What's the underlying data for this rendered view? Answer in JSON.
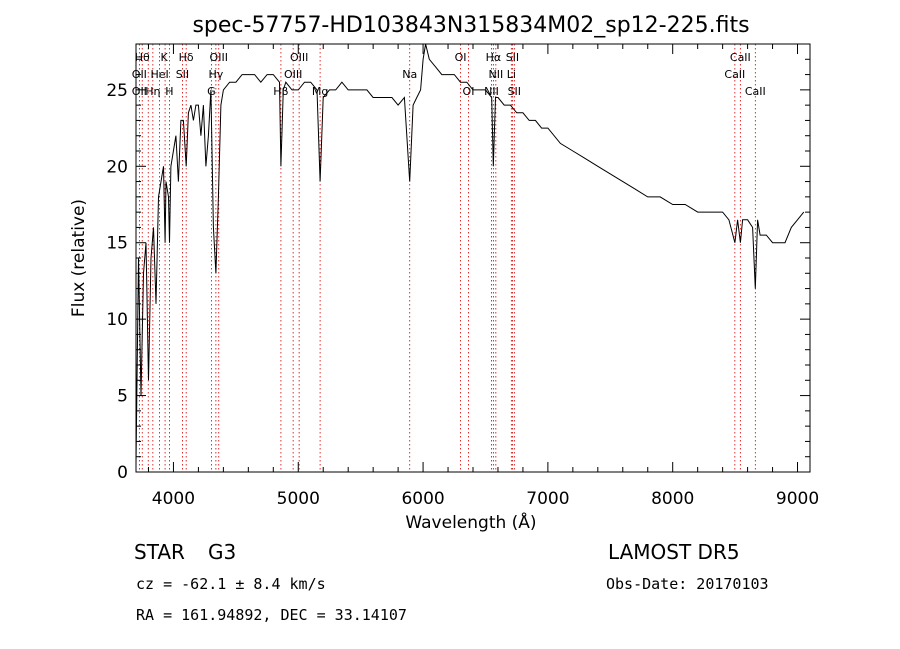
{
  "chart_data": {
    "type": "line",
    "title": "spec-57757-HD103843N315834M02_sp12-225.fits",
    "xlabel": "Wavelength (Å)",
    "ylabel": "Flux (relative)",
    "xlim": [
      3700,
      9100
    ],
    "ylim": [
      0,
      28
    ],
    "x_ticks": [
      4000,
      5000,
      6000,
      7000,
      8000,
      9000
    ],
    "y_ticks": [
      0,
      5,
      10,
      15,
      20,
      25
    ],
    "grid": false,
    "series": [
      {
        "x": [
          3700,
          3720,
          3740,
          3760,
          3780,
          3800,
          3820,
          3840,
          3860,
          3880,
          3900,
          3920,
          3933,
          3940,
          3960,
          3968,
          3980,
          4000,
          4020,
          4040,
          4060,
          4080,
          4102,
          4120,
          4140,
          4160,
          4180,
          4200,
          4220,
          4240,
          4260,
          4280,
          4300,
          4320,
          4340,
          4360,
          4380,
          4400,
          4450,
          4500,
          4550,
          4600,
          4650,
          4700,
          4750,
          4800,
          4850,
          4861,
          4880,
          4900,
          4950,
          5000,
          5050,
          5100,
          5150,
          5175,
          5200,
          5250,
          5300,
          5350,
          5400,
          5450,
          5500,
          5550,
          5600,
          5650,
          5700,
          5750,
          5800,
          5850,
          5893,
          5920,
          5950,
          5980,
          6000,
          6020,
          6050,
          6100,
          6150,
          6200,
          6250,
          6300,
          6350,
          6400,
          6450,
          6500,
          6550,
          6563,
          6580,
          6600,
          6650,
          6700,
          6750,
          6800,
          6850,
          6900,
          6950,
          7000,
          7100,
          7200,
          7300,
          7400,
          7500,
          7600,
          7700,
          7800,
          7900,
          8000,
          8100,
          8200,
          8300,
          8400,
          8450,
          8498,
          8520,
          8542,
          8560,
          8600,
          8640,
          8662,
          8680,
          8700,
          8750,
          8800,
          8850,
          8900,
          8950,
          9000,
          9050
        ],
        "y": [
          0.5,
          14,
          5,
          13,
          15,
          6,
          14,
          16,
          11,
          18,
          19,
          20,
          15,
          19,
          18,
          15,
          20,
          21,
          22,
          19,
          23,
          23,
          20,
          23.5,
          24,
          23,
          24,
          24,
          22,
          24,
          20,
          22,
          25,
          16,
          13,
          18,
          24,
          25,
          25.5,
          25.5,
          26,
          26,
          26,
          25.5,
          26,
          26,
          25.5,
          20,
          25,
          25.5,
          25,
          25,
          25.5,
          25.5,
          25,
          19,
          24.5,
          25,
          25,
          25.5,
          25,
          25,
          25,
          25,
          24.5,
          24.5,
          24.5,
          24.5,
          24,
          24.5,
          19,
          24,
          24.5,
          25,
          27,
          28,
          27,
          26.5,
          26,
          26,
          26,
          25.5,
          25.5,
          25,
          25,
          25,
          24.5,
          20,
          24.5,
          24.5,
          24,
          24,
          23.5,
          23.5,
          23,
          23,
          22.5,
          22.5,
          21.5,
          21,
          20.5,
          20,
          19.5,
          19,
          18.5,
          18,
          18,
          17.5,
          17.5,
          17,
          17,
          17,
          16.5,
          15,
          16.5,
          15,
          16.5,
          16.5,
          16,
          12,
          16.5,
          15.5,
          15.5,
          15,
          15,
          15,
          16,
          16.5,
          17
        ]
      }
    ],
    "line_markers": [
      {
        "wavelength": 3750,
        "label": "Hθ"
      },
      {
        "wavelength": 3727,
        "label": "OII"
      },
      {
        "wavelength": 3798,
        "label": "Hη"
      },
      {
        "wavelength": 3835,
        "label": "Hη"
      },
      {
        "wavelength": 3889,
        "label": "HeI"
      },
      {
        "wavelength": 3933,
        "label": "K"
      },
      {
        "wavelength": 3968,
        "label": "H"
      },
      {
        "wavelength": 4072,
        "label": "SII"
      },
      {
        "wavelength": 4102,
        "label": "Hδ"
      },
      {
        "wavelength": 4304,
        "label": "G"
      },
      {
        "wavelength": 4340,
        "label": "Hγ"
      },
      {
        "wavelength": 4363,
        "label": "OIII"
      },
      {
        "wavelength": 4861,
        "label": "Hβ"
      },
      {
        "wavelength": 4959,
        "label": "OIII"
      },
      {
        "wavelength": 5007,
        "label": "OIII"
      },
      {
        "wavelength": 5175,
        "label": "Mg"
      },
      {
        "wavelength": 5893,
        "label": "Na"
      },
      {
        "wavelength": 6300,
        "label": "OI"
      },
      {
        "wavelength": 6364,
        "label": "OI"
      },
      {
        "wavelength": 6548,
        "label": "NII"
      },
      {
        "wavelength": 6563,
        "label": "Hα"
      },
      {
        "wavelength": 6583,
        "label": "NII"
      },
      {
        "wavelength": 6707,
        "label": "Li"
      },
      {
        "wavelength": 6716,
        "label": "SII"
      },
      {
        "wavelength": 6731,
        "label": "SII"
      },
      {
        "wavelength": 8498,
        "label": "CaII"
      },
      {
        "wavelength": 8542,
        "label": "CaII"
      },
      {
        "wavelength": 8662,
        "label": "CaII"
      }
    ],
    "line_labels_row1": [
      {
        "wavelength": 3750,
        "text": "Hθ"
      },
      {
        "wavelength": 3925,
        "text": "K"
      },
      {
        "wavelength": 4102,
        "text": "Hδ"
      },
      {
        "wavelength": 4363,
        "text": "OIII"
      },
      {
        "wavelength": 5007,
        "text": "OIII"
      },
      {
        "wavelength": 6300,
        "text": "OI"
      },
      {
        "wavelength": 6563,
        "text": "Hα"
      },
      {
        "wavelength": 6716,
        "text": "SII"
      },
      {
        "wavelength": 8542,
        "text": "CaII"
      }
    ],
    "line_labels_row2": [
      {
        "wavelength": 3727,
        "text": "OII"
      },
      {
        "wavelength": 3889,
        "text": "HeI"
      },
      {
        "wavelength": 4072,
        "text": "SII"
      },
      {
        "wavelength": 4340,
        "text": "Hγ"
      },
      {
        "wavelength": 4959,
        "text": "OIII"
      },
      {
        "wavelength": 5893,
        "text": "Na"
      },
      {
        "wavelength": 6583,
        "text": "NII"
      },
      {
        "wavelength": 6707,
        "text": "Li"
      },
      {
        "wavelength": 8498,
        "text": "CaII"
      }
    ],
    "line_labels_row3": [
      {
        "wavelength": 3727,
        "text": "OII"
      },
      {
        "wavelength": 3835,
        "text": "Hη"
      },
      {
        "wavelength": 3968,
        "text": "H"
      },
      {
        "wavelength": 4304,
        "text": "G"
      },
      {
        "wavelength": 4861,
        "text": "Hβ"
      },
      {
        "wavelength": 5175,
        "text": "Mg"
      },
      {
        "wavelength": 6364,
        "text": "OI"
      },
      {
        "wavelength": 6548,
        "text": "NII"
      },
      {
        "wavelength": 6731,
        "text": "SII"
      },
      {
        "wavelength": 8662,
        "text": "CaII"
      }
    ],
    "marker_color": "#cc0000"
  },
  "footer": {
    "object_class": "STAR",
    "subclass": "G3",
    "survey": "LAMOST DR5",
    "cz": "cz = -62.1 ± 8.4 km/s",
    "obs_date": "Obs-Date: 20170103",
    "coords": "RA = 161.94892, DEC =  33.14107"
  }
}
